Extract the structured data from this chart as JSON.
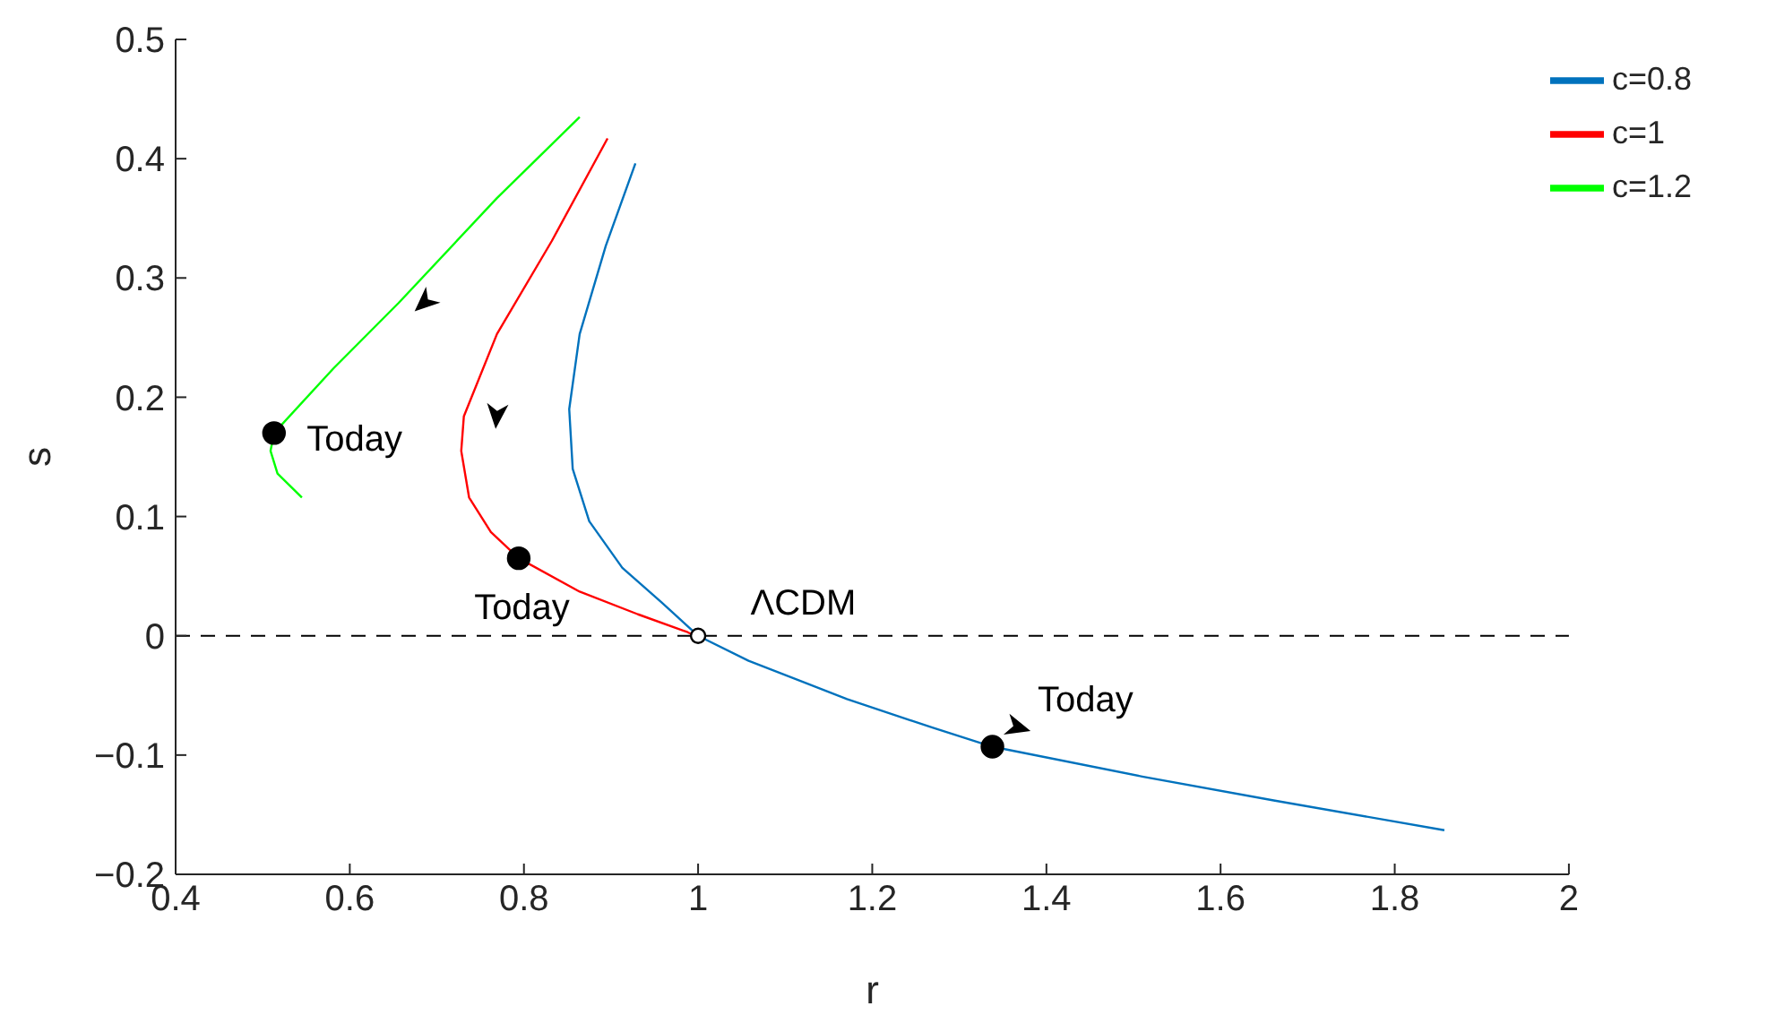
{
  "chart_data": {
    "type": "line",
    "xlabel": "r",
    "ylabel": "s",
    "xlim": [
      0.4,
      2
    ],
    "xticks": [
      0.4,
      0.6,
      0.8,
      1,
      1.2,
      1.4,
      1.6,
      1.8,
      2
    ],
    "ylim": [
      -0.2,
      0.5
    ],
    "yticks": [
      -0.2,
      -0.1,
      0,
      0.1,
      0.2,
      0.3,
      0.4,
      0.5
    ],
    "grid": false,
    "legend": "top right",
    "line_style": "solid",
    "marker": "none",
    "series": [
      {
        "name": "c=0.8",
        "color": "#0072bd",
        "x": [
          0.928,
          0.894,
          0.864,
          0.852,
          0.856,
          0.875,
          0.913,
          0.958,
          1,
          1.058,
          1.171,
          1.269,
          1.338,
          1.51,
          1.661,
          1.857
        ],
        "values": [
          0.396,
          0.327,
          0.253,
          0.19,
          0.14,
          0.096,
          0.057,
          0.028,
          0,
          -0.021,
          -0.053,
          -0.077,
          -0.093,
          -0.118,
          -0.138,
          -0.163
        ]
      },
      {
        "name": "c=1",
        "color": "#ff0000",
        "x": [
          0.896,
          0.832,
          0.769,
          0.731,
          0.728,
          0.737,
          0.762,
          0.794,
          0.864,
          0.931,
          0.988,
          0.996
        ],
        "values": [
          0.417,
          0.331,
          0.253,
          0.184,
          0.155,
          0.116,
          0.087,
          0.065,
          0.037,
          0.018,
          0.003,
          0
        ]
      },
      {
        "name": "c=1.2",
        "color": "#00ff00",
        "x": [
          0.864,
          0.769,
          0.656,
          0.581,
          0.513,
          0.509,
          0.517,
          0.545
        ],
        "values": [
          0.435,
          0.367,
          0.279,
          0.224,
          0.17,
          0.155,
          0.136,
          0.116
        ]
      },
      {
        "type": "scatter",
        "color": "#000000",
        "marker": "circle",
        "x": [
          0.513,
          0.794,
          1.338
        ],
        "values": [
          0.17,
          0.065,
          -0.093
        ]
      },
      {
        "type": "scatter",
        "color": "#000000",
        "marker": "circle",
        "x": [
          1
        ],
        "values": [
          0
        ]
      }
    ],
    "ref_lines": [
      {
        "axis": "y",
        "value": 0,
        "color": "#000000",
        "line_style": "dashed"
      }
    ],
    "annotations": [
      {
        "text": "Today",
        "x": 0.513,
        "y": 0.17
      },
      {
        "text": "Today",
        "x": 0.794,
        "y": 0.065
      },
      {
        "text": "Today",
        "x": 1.338,
        "y": -0.093
      },
      {
        "text": "ΛCDM",
        "x": 1,
        "y": 0
      }
    ]
  }
}
